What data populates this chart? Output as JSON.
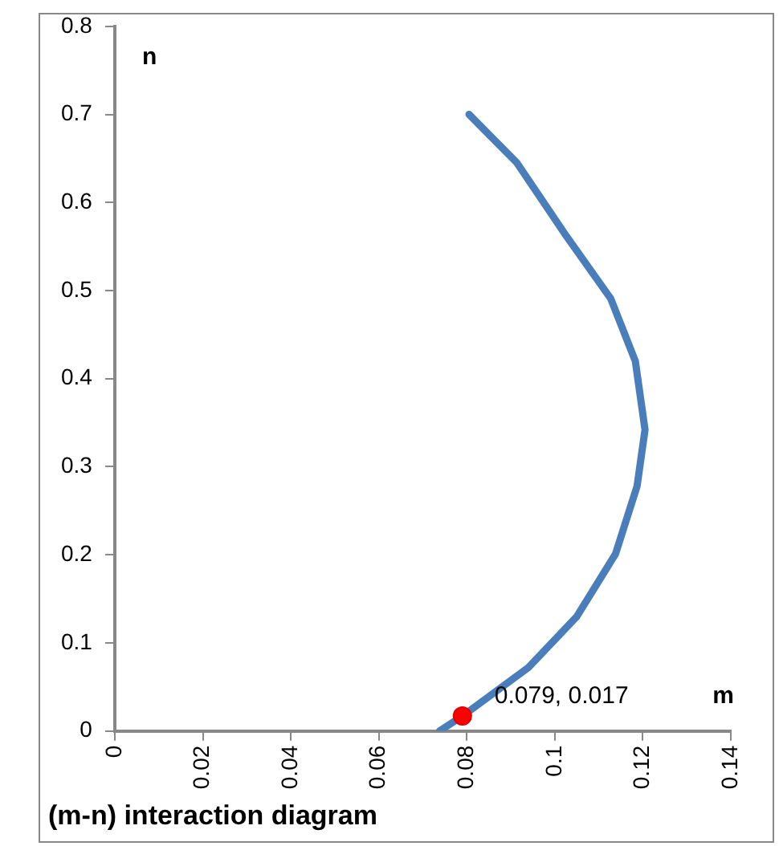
{
  "chart_data": {
    "type": "line",
    "title": "(m-n) interaction diagram",
    "xlabel": "m",
    "ylabel": "n",
    "series": [
      {
        "color": "#4a7ebb",
        "x": [
          0.0738,
          0.079,
          0.094,
          0.105,
          0.1138,
          0.1187,
          0.1205,
          0.1183,
          0.1127,
          0.1026,
          0.0914,
          0.0805
        ],
        "values": [
          0,
          0.017,
          0.072,
          0.13,
          0.201,
          0.278,
          0.342,
          0.42,
          0.491,
          0.562,
          0.645,
          0.7
        ]
      },
      {
        "type": "scatter",
        "color": "#ff0000",
        "x": [
          0.079
        ],
        "values": [
          0.017
        ]
      }
    ],
    "annotations": [
      {
        "text": "0.079, 0.017",
        "x": 0.079,
        "y": 0.017
      }
    ],
    "xlim": [
      0,
      0.14
    ],
    "xticks": [
      0,
      0.02,
      0.04,
      0.06,
      0.08,
      0.1,
      0.12,
      0.14
    ],
    "ylim": [
      0,
      0.8
    ],
    "yticks": [
      0,
      0.1,
      0.2,
      0.3,
      0.4,
      0.5,
      0.6,
      0.7,
      0.8
    ],
    "grid": false,
    "legend": false,
    "line_style": "solid"
  }
}
